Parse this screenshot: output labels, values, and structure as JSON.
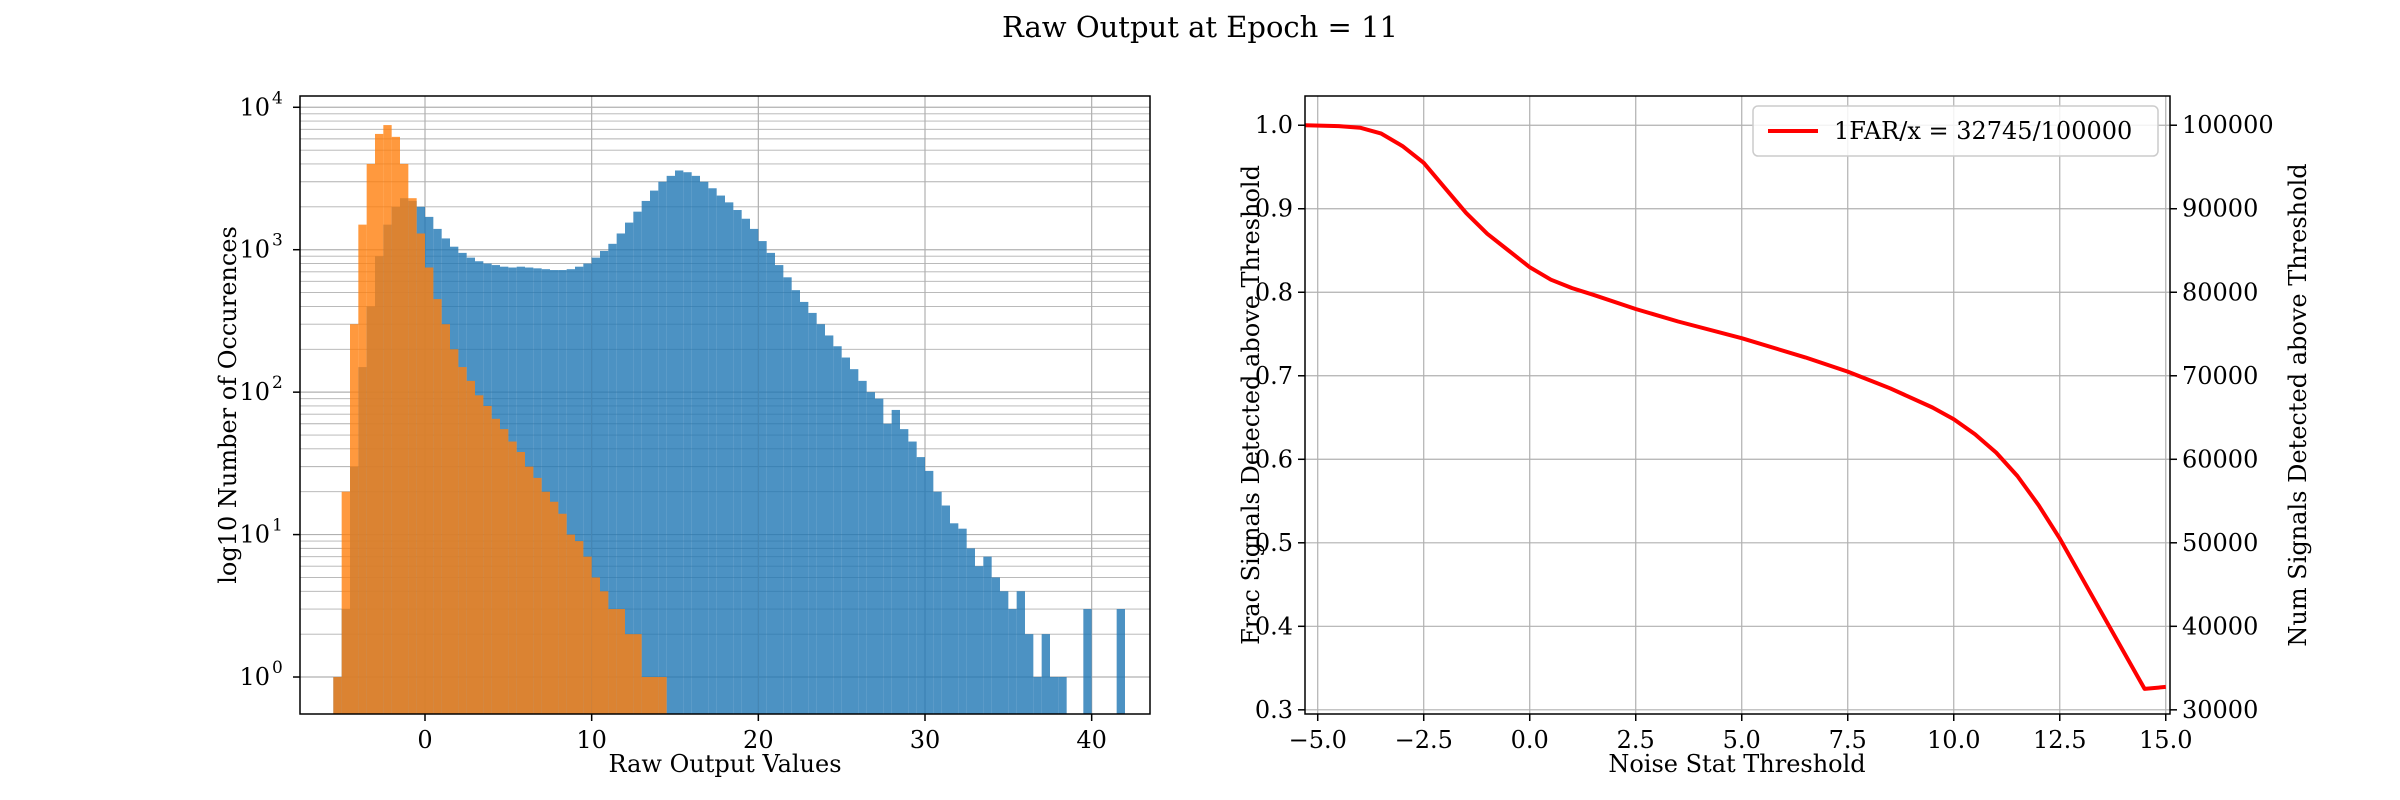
{
  "figure": {
    "suptitle": "Raw Output at Epoch = 11"
  },
  "chart_data": [
    {
      "type": "histogram",
      "xlabel": "Raw Output Values",
      "ylabel": "log10 Number of Occurences",
      "xlim": [
        -7.5,
        43.5
      ],
      "ylim": [
        0.55,
        12000
      ],
      "yscale": "log",
      "grid": true,
      "xticks": [
        0,
        10,
        20,
        30,
        40
      ],
      "yticks": [
        1,
        10,
        100,
        1000,
        10000
      ],
      "ytick_labels": [
        "10^0",
        "10^1",
        "10^2",
        "10^3",
        "10^4"
      ],
      "series": [
        {
          "color": "#1f77b4",
          "alpha": 0.8,
          "points": [
            [
              -5.5,
              1
            ],
            [
              -5,
              3
            ],
            [
              -4.5,
              30
            ],
            [
              -4,
              150
            ],
            [
              -3.5,
              400
            ],
            [
              -3,
              900
            ],
            [
              -2.5,
              1500
            ],
            [
              -2,
              2000
            ],
            [
              -1.5,
              2300
            ],
            [
              -1,
              2200
            ],
            [
              -0.5,
              2000
            ],
            [
              0,
              1700
            ],
            [
              0.5,
              1400
            ],
            [
              1,
              1200
            ],
            [
              1.5,
              1050
            ],
            [
              2,
              950
            ],
            [
              2.5,
              880
            ],
            [
              3,
              830
            ],
            [
              3.5,
              800
            ],
            [
              4,
              780
            ],
            [
              4.5,
              760
            ],
            [
              5,
              750
            ],
            [
              5.5,
              760
            ],
            [
              6,
              750
            ],
            [
              6.5,
              740
            ],
            [
              7,
              730
            ],
            [
              7.5,
              720
            ],
            [
              8,
              720
            ],
            [
              8.5,
              730
            ],
            [
              9,
              760
            ],
            [
              9.5,
              800
            ],
            [
              10,
              880
            ],
            [
              10.5,
              980
            ],
            [
              11,
              1100
            ],
            [
              11.5,
              1300
            ],
            [
              12,
              1550
            ],
            [
              12.5,
              1850
            ],
            [
              13,
              2200
            ],
            [
              13.5,
              2600
            ],
            [
              14,
              3000
            ],
            [
              14.5,
              3300
            ],
            [
              15,
              3600
            ],
            [
              15.5,
              3500
            ],
            [
              16,
              3300
            ],
            [
              16.5,
              3000
            ],
            [
              17,
              2700
            ],
            [
              17.5,
              2400
            ],
            [
              18,
              2150
            ],
            [
              18.5,
              1900
            ],
            [
              19,
              1650
            ],
            [
              19.5,
              1400
            ],
            [
              20,
              1150
            ],
            [
              20.5,
              950
            ],
            [
              21,
              780
            ],
            [
              21.5,
              640
            ],
            [
              22,
              520
            ],
            [
              22.5,
              430
            ],
            [
              23,
              360
            ],
            [
              23.5,
              300
            ],
            [
              24,
              250
            ],
            [
              24.5,
              210
            ],
            [
              25,
              175
            ],
            [
              25.5,
              145
            ],
            [
              26,
              120
            ],
            [
              26.5,
              100
            ],
            [
              27,
              90
            ],
            [
              27.5,
              60
            ],
            [
              28,
              75
            ],
            [
              28.5,
              55
            ],
            [
              29,
              45
            ],
            [
              29.5,
              35
            ],
            [
              30,
              28
            ],
            [
              30.5,
              20
            ],
            [
              31,
              16
            ],
            [
              31.5,
              12
            ],
            [
              32,
              11
            ],
            [
              32.5,
              8
            ],
            [
              33,
              6
            ],
            [
              33.5,
              7
            ],
            [
              34,
              5
            ],
            [
              34.5,
              4
            ],
            [
              35,
              3
            ],
            [
              35.5,
              4
            ],
            [
              36,
              2
            ],
            [
              36.5,
              1
            ],
            [
              37,
              2
            ],
            [
              37.5,
              1
            ],
            [
              38,
              1
            ],
            [
              39.5,
              3
            ],
            [
              41.5,
              3
            ]
          ]
        },
        {
          "color": "#ff7f0e",
          "alpha": 0.8,
          "points": [
            [
              -5.5,
              1
            ],
            [
              -5,
              20
            ],
            [
              -4.5,
              300
            ],
            [
              -4,
              1500
            ],
            [
              -3.5,
              4000
            ],
            [
              -3,
              6500
            ],
            [
              -2.5,
              7500
            ],
            [
              -2,
              6200
            ],
            [
              -1.5,
              4000
            ],
            [
              -1,
              2300
            ],
            [
              -0.5,
              1300
            ],
            [
              0,
              750
            ],
            [
              0.5,
              450
            ],
            [
              1,
              300
            ],
            [
              1.5,
              200
            ],
            [
              2,
              150
            ],
            [
              2.5,
              120
            ],
            [
              3,
              95
            ],
            [
              3.5,
              80
            ],
            [
              4,
              65
            ],
            [
              4.5,
              55
            ],
            [
              5,
              45
            ],
            [
              5.5,
              38
            ],
            [
              6,
              30
            ],
            [
              6.5,
              25
            ],
            [
              7,
              20
            ],
            [
              7.5,
              17
            ],
            [
              8,
              14
            ],
            [
              8.5,
              10
            ],
            [
              9,
              9
            ],
            [
              9.5,
              7
            ],
            [
              10,
              5
            ],
            [
              10.5,
              4
            ],
            [
              11,
              3
            ],
            [
              11.5,
              3
            ],
            [
              12,
              2
            ],
            [
              12.5,
              2
            ],
            [
              13,
              1
            ],
            [
              13.5,
              1
            ],
            [
              14,
              1
            ]
          ]
        }
      ]
    },
    {
      "type": "line",
      "xlabel": "Noise Stat Threshold",
      "ylabel": "Frac Signals Detected above Threshold",
      "ylabel_right": "Num Signals Detected above Threshold",
      "xlim": [
        -5.3,
        15.1
      ],
      "ylim": [
        0.295,
        1.035
      ],
      "ylim_right": [
        29500,
        103500
      ],
      "grid": true,
      "legend_position": "top-right",
      "xticks": [
        -5.0,
        -2.5,
        0.0,
        2.5,
        5.0,
        7.5,
        10.0,
        12.5,
        15.0
      ],
      "xtick_labels": [
        "−5.0",
        "−2.5",
        "0.0",
        "2.5",
        "5.0",
        "7.5",
        "10.0",
        "12.5",
        "15.0"
      ],
      "yticks": [
        0.3,
        0.4,
        0.5,
        0.6,
        0.7,
        0.8,
        0.9,
        1.0
      ],
      "ytick_labels": [
        "0.3",
        "0.4",
        "0.5",
        "0.6",
        "0.7",
        "0.8",
        "0.9",
        "1.0"
      ],
      "yticks_right": [
        30000,
        40000,
        50000,
        60000,
        70000,
        80000,
        90000,
        100000
      ],
      "series": [
        {
          "name": "1FAR/x = 32745/100000",
          "color": "#ff0000",
          "x": [
            -5.3,
            -4.5,
            -4.0,
            -3.5,
            -3.0,
            -2.5,
            -2.0,
            -1.5,
            -1.0,
            -0.5,
            0.0,
            0.5,
            1.0,
            1.5,
            2.5,
            3.5,
            5.0,
            6.5,
            7.5,
            8.5,
            9.5,
            10.0,
            10.5,
            11.0,
            11.5,
            12.0,
            12.5,
            13.0,
            13.5,
            14.0,
            14.5,
            15.0
          ],
          "y": [
            1.0,
            0.999,
            0.997,
            0.99,
            0.975,
            0.955,
            0.925,
            0.895,
            0.87,
            0.85,
            0.83,
            0.815,
            0.805,
            0.797,
            0.78,
            0.765,
            0.745,
            0.722,
            0.705,
            0.685,
            0.662,
            0.648,
            0.63,
            0.608,
            0.58,
            0.545,
            0.505,
            0.46,
            0.415,
            0.37,
            0.325,
            0.3275
          ]
        }
      ]
    }
  ]
}
